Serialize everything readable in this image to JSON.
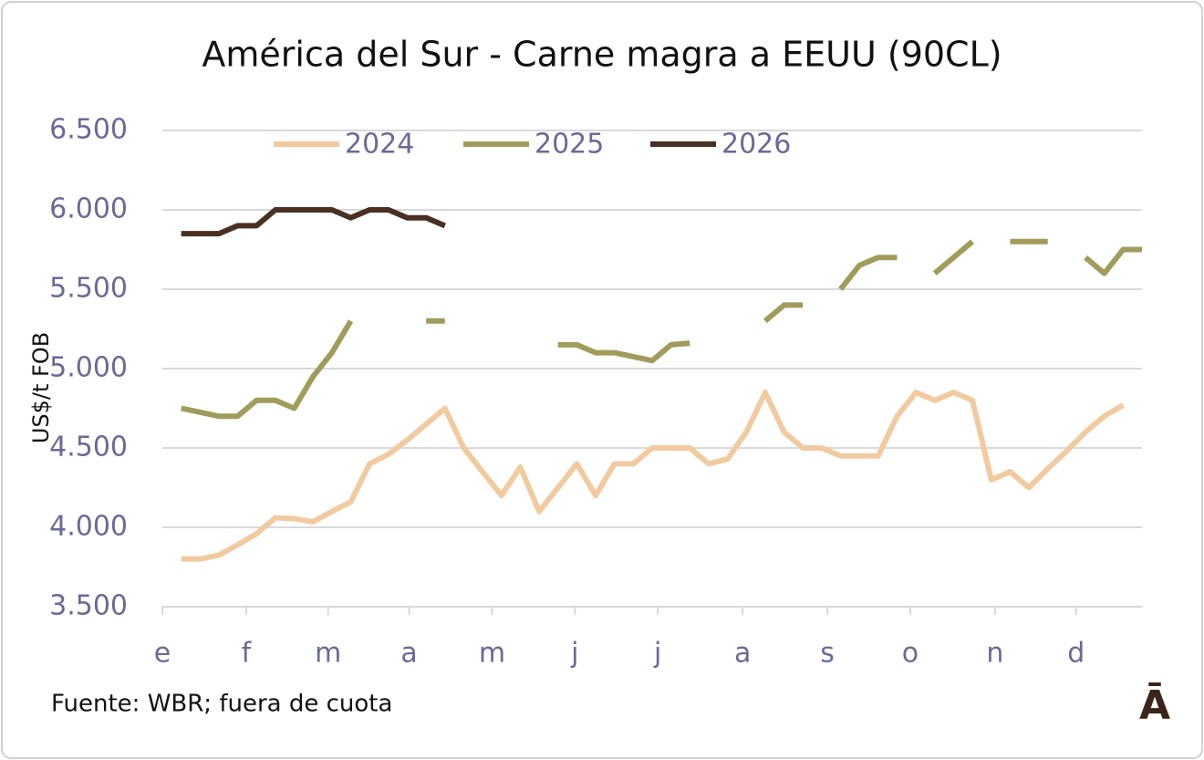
{
  "chart_data": {
    "type": "line",
    "title": "América del Sur - Carne magra a EEUU (90CL)",
    "y_label": "US$/t FOB",
    "source": "Fuente: WBR; fuera de cuota",
    "logo": "Ā",
    "x": [
      1,
      2,
      3,
      4,
      5,
      6,
      7,
      8,
      9,
      10,
      11,
      12,
      13,
      14,
      15,
      16,
      17,
      18,
      19,
      20,
      21,
      22,
      23,
      24,
      25,
      26,
      27,
      28,
      29,
      30,
      31,
      32,
      33,
      34,
      35,
      36,
      37,
      38,
      39,
      40,
      41,
      42,
      43,
      44,
      45,
      46,
      47,
      48,
      49,
      50,
      51,
      52
    ],
    "xlim": [
      0,
      52
    ],
    "xticks": [
      {
        "value": 0,
        "label": "e"
      },
      {
        "value": 4.45,
        "label": "f"
      },
      {
        "value": 8.8,
        "label": "m"
      },
      {
        "value": 13.1,
        "label": "a"
      },
      {
        "value": 17.5,
        "label": "m"
      },
      {
        "value": 21.9,
        "label": "j"
      },
      {
        "value": 26.3,
        "label": "j"
      },
      {
        "value": 30.8,
        "label": "a"
      },
      {
        "value": 35.3,
        "label": "s"
      },
      {
        "value": 39.7,
        "label": "o"
      },
      {
        "value": 44.2,
        "label": "n"
      },
      {
        "value": 48.5,
        "label": "d"
      }
    ],
    "ylim": [
      3500,
      6500
    ],
    "yticks": [
      {
        "value": 3500,
        "label": "3.500"
      },
      {
        "value": 4000,
        "label": "4.000"
      },
      {
        "value": 4500,
        "label": "4.500"
      },
      {
        "value": 5000,
        "label": "5.000"
      },
      {
        "value": 5500,
        "label": "5.500"
      },
      {
        "value": 6000,
        "label": "6.000"
      },
      {
        "value": 6500,
        "label": "6.500"
      }
    ],
    "grid": true,
    "legend": "top",
    "series": [
      {
        "name": "2024",
        "color": "#f2caa0",
        "values": [
          3800,
          3800,
          3825,
          3890,
          3960,
          4060,
          4055,
          4035,
          4100,
          4160,
          4400,
          4460,
          4550,
          4650,
          4750,
          4500,
          4350,
          4200,
          4380,
          4100,
          4250,
          4400,
          4200,
          4400,
          4400,
          4500,
          4500,
          4500,
          4400,
          4430,
          4600,
          4850,
          4600,
          4500,
          4500,
          4450,
          4450,
          4450,
          4700,
          4850,
          4800,
          4850,
          4800,
          4300,
          4350,
          4250,
          4370,
          4480,
          4600,
          4700,
          4770,
          null
        ]
      },
      {
        "name": "2025",
        "color": "#a29c5c",
        "values": [
          4750,
          4725,
          4700,
          4700,
          4800,
          4800,
          4750,
          4950,
          5100,
          5300,
          null,
          null,
          null,
          5300,
          5300,
          null,
          null,
          null,
          null,
          null,
          5150,
          5150,
          5100,
          5100,
          5075,
          5050,
          5150,
          5160,
          null,
          null,
          null,
          5300,
          5400,
          5400,
          null,
          5500,
          5650,
          5700,
          5700,
          null,
          5600,
          5700,
          5800,
          null,
          5800,
          5800,
          5800,
          null,
          5700,
          5600,
          5750,
          5750
        ]
      },
      {
        "name": "2026",
        "color": "#4a3022",
        "values": [
          5850,
          5850,
          5850,
          5900,
          5900,
          6000,
          6000,
          6000,
          6000,
          5950,
          6000,
          6000,
          5950,
          5950,
          5900,
          null,
          null,
          null,
          null,
          null,
          null,
          null,
          null,
          null,
          null,
          null,
          null,
          null,
          null,
          null,
          null,
          null,
          null,
          null,
          null,
          null,
          null,
          null,
          null,
          null,
          null,
          null,
          null,
          null,
          null,
          null,
          null,
          null,
          null,
          null,
          null,
          null
        ]
      }
    ]
  }
}
